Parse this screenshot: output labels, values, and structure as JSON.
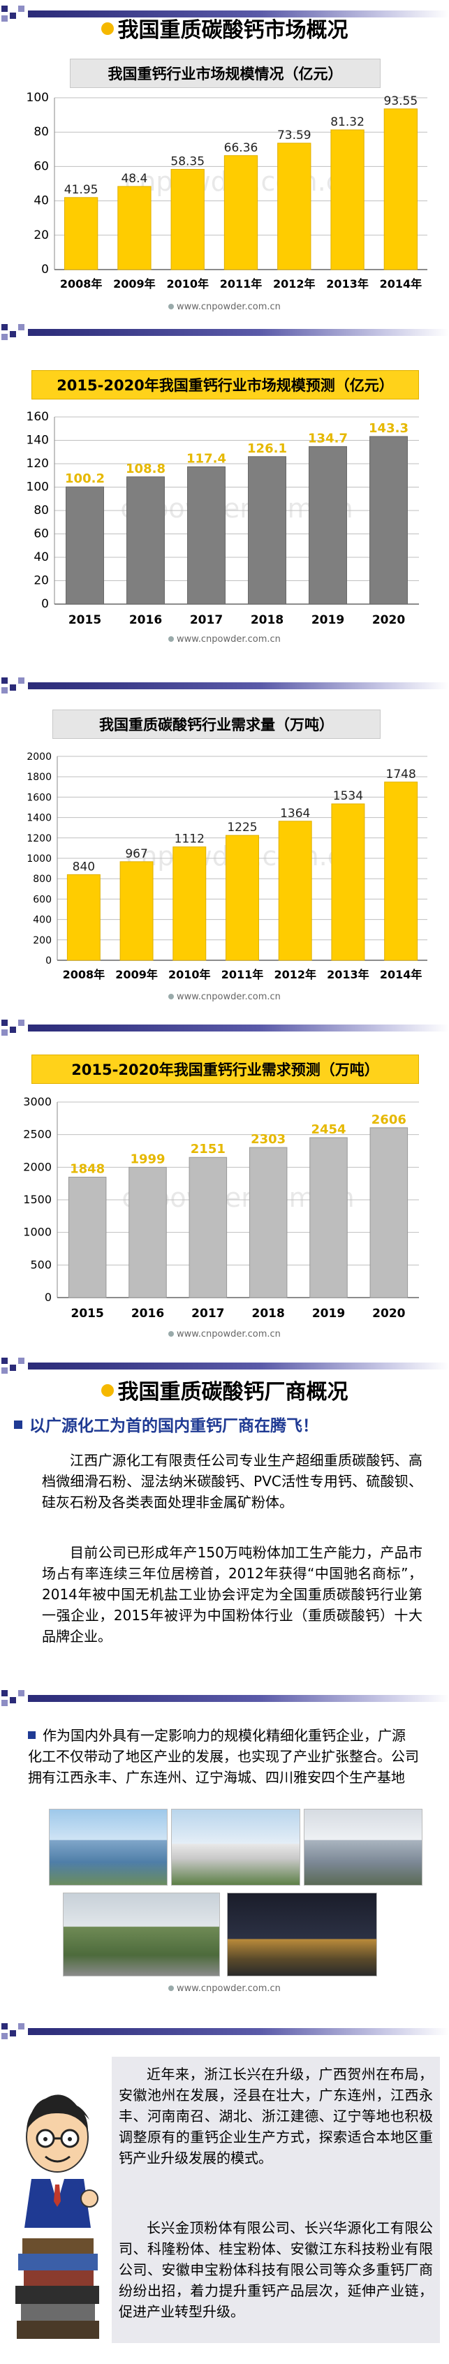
{
  "section1": {
    "title": "我国重质碳酸钙市场概况"
  },
  "charts_text": {
    "c1_title": "我国重钙行业市场规模情况（亿元）",
    "c2_title": "2015-2020年我国重钙行业市场规模预测（亿元）",
    "c3_title": "我国重质碳酸钙行业需求量（万吨）",
    "c4_title": "2015-2020年我国重钙行业需求预测（万吨）"
  },
  "watermark": "cnpowder.com.cn",
  "credit": "www.cnpowder.com.cn",
  "section2": {
    "title": "我国重质碳酸钙厂商概况",
    "subhead": "以广源化工为首的国内重钙厂商在腾飞！",
    "para1": "江西广源化工有限责任公司专业生产超细重质碳酸钙、高档微细滑石粉、湿法纳米碳酸钙、PVC活性专用钙、硫酸钡、硅灰石粉及各类表面处理非金属矿粉体。",
    "para2": "目前公司已形成年产150万吨粉体加工生产能力，产品市场占有率连续三年位居榜首，2012年获得“中国驰名商标”，2014年被中国无机盐工业协会评定为全国重质碳酸钙行业第一强企业，2015年被评为中国粉体行业（重质碳酸钙）十大品牌企业。",
    "bullet": "作为国内外具有一定影响力的规模化精细化重钙企业，广源化工不仅带动了地区产业的发展，也实现了产业扩张整合。公司拥有江西永丰、广东连州、辽宁海城、四川雅安四个生产基地"
  },
  "section3": {
    "para1": "近年来，浙江长兴在升级，广西贺州在布局，安徽池州在发展，泾县在壮大，广东连州，江西永丰、河南南召、湖北、浙江建德、辽宁等地也积极调整原有的重钙企业生产方式，探索适合本地区重钙产业升级发展的模式。",
    "para2": "长兴金顶粉体有限公司、长兴华源化工有限公司、科隆粉体、桂宝粉体、安徽江东科技粉业有限公司、安徽申宝粉体科技有限公司等众多重钙厂商纷纷出招，着力提升重钙产品层次，延伸产业链，促进产业转型升级。"
  },
  "colors": {
    "bar_yellow": "#ffcc00",
    "bar_gray": "#7f7f7f",
    "bar_lightgray": "#bdbdbd",
    "label_yellow": "#e6b800"
  },
  "chart_data": [
    {
      "type": "bar",
      "title": "我国重钙行业市场规模情况（亿元）",
      "categories": [
        "2008年",
        "2009年",
        "2010年",
        "2011年",
        "2012年",
        "2013年",
        "2014年"
      ],
      "values": [
        41.95,
        48.4,
        58.35,
        66.36,
        73.59,
        81.32,
        93.55
      ],
      "value_labels": [
        "41.95",
        "48.4",
        "58.35",
        "66.36",
        "73.59",
        "81.32",
        "93.55"
      ],
      "ylim": [
        0,
        100
      ],
      "yticks": [
        0,
        20,
        40,
        60,
        80,
        100
      ],
      "color": "#ffcc00",
      "grid": true
    },
    {
      "type": "bar",
      "title": "2015-2020年我国重钙行业市场规模预测（亿元）",
      "categories": [
        "2015",
        "2016",
        "2017",
        "2018",
        "2019",
        "2020"
      ],
      "values": [
        100.2,
        108.8,
        117.4,
        126.1,
        134.7,
        143.3
      ],
      "value_labels": [
        "100.2",
        "108.8",
        "117.4",
        "126.1",
        "134.7",
        "143.3"
      ],
      "ylim": [
        0,
        160
      ],
      "yticks": [
        0,
        20,
        40,
        60,
        80,
        100,
        120,
        140,
        160
      ],
      "color": "#7f7f7f",
      "grid": true
    },
    {
      "type": "bar",
      "title": "我国重质碳酸钙行业需求量（万吨）",
      "categories": [
        "2008年",
        "2009年",
        "2010年",
        "2011年",
        "2012年",
        "2013年",
        "2014年"
      ],
      "values": [
        840,
        967,
        1112,
        1225,
        1364,
        1534,
        1748
      ],
      "value_labels": [
        "840",
        "967",
        "1112",
        "1225",
        "1364",
        "1534",
        "1748"
      ],
      "ylim": [
        0,
        2000
      ],
      "yticks": [
        0,
        200,
        400,
        600,
        800,
        1000,
        1200,
        1400,
        1600,
        1800,
        2000
      ],
      "color": "#ffcc00",
      "grid": true
    },
    {
      "type": "bar",
      "title": "2015-2020年我国重钙行业需求预测（万吨）",
      "categories": [
        "2015",
        "2016",
        "2017",
        "2018",
        "2019",
        "2020"
      ],
      "values": [
        1848,
        1999,
        2151,
        2303,
        2454,
        2606
      ],
      "value_labels": [
        "1848",
        "1999",
        "2151",
        "2303",
        "2454",
        "2606"
      ],
      "ylim": [
        0,
        3000
      ],
      "yticks": [
        0,
        500,
        1000,
        1500,
        2000,
        2500,
        3000
      ],
      "color": "#bdbdbd",
      "grid": true
    }
  ]
}
